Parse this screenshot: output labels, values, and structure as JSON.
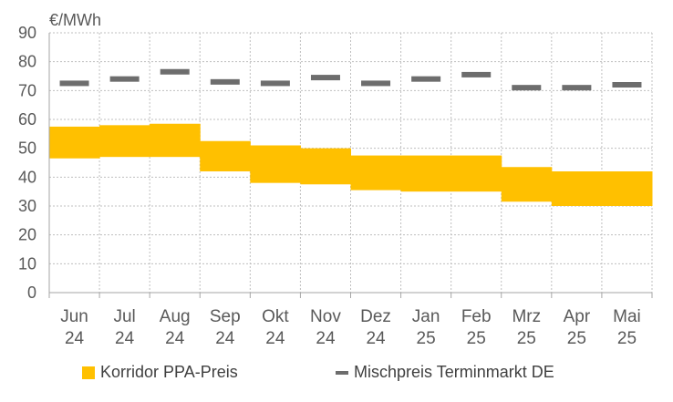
{
  "chart_data": {
    "type": "bar",
    "unit_label": "€/MWh",
    "categories": [
      [
        "Jun",
        "24"
      ],
      [
        "Jul",
        "24"
      ],
      [
        "Aug",
        "24"
      ],
      [
        "Sep",
        "24"
      ],
      [
        "Okt",
        "24"
      ],
      [
        "Nov",
        "24"
      ],
      [
        "Dez",
        "24"
      ],
      [
        "Jan",
        "25"
      ],
      [
        "Feb",
        "25"
      ],
      [
        "Mrz",
        "25"
      ],
      [
        "Apr",
        "25"
      ],
      [
        "Mai",
        "25"
      ]
    ],
    "ylim": [
      0,
      90
    ],
    "yticks": [
      0,
      10,
      20,
      30,
      40,
      50,
      60,
      70,
      80,
      90
    ],
    "grid": true,
    "series": [
      {
        "name": "Korridor PPA-Preis",
        "type": "range-band",
        "color": "#FFC000",
        "low": [
          46.5,
          47,
          47,
          42,
          38,
          37.5,
          35.5,
          35,
          35,
          31.5,
          30,
          30
        ],
        "high": [
          57.5,
          58,
          58.5,
          52.5,
          51,
          50,
          47.5,
          47.5,
          47.5,
          43.5,
          42,
          42
        ]
      },
      {
        "name": "Mischpreis Terminmarkt DE",
        "type": "marker-line",
        "color": "#6D6D6D",
        "values": [
          72.5,
          74,
          76.5,
          73,
          72.5,
          74.5,
          72.5,
          74,
          75.5,
          71,
          71,
          72
        ]
      }
    ],
    "legend_position": "bottom"
  }
}
